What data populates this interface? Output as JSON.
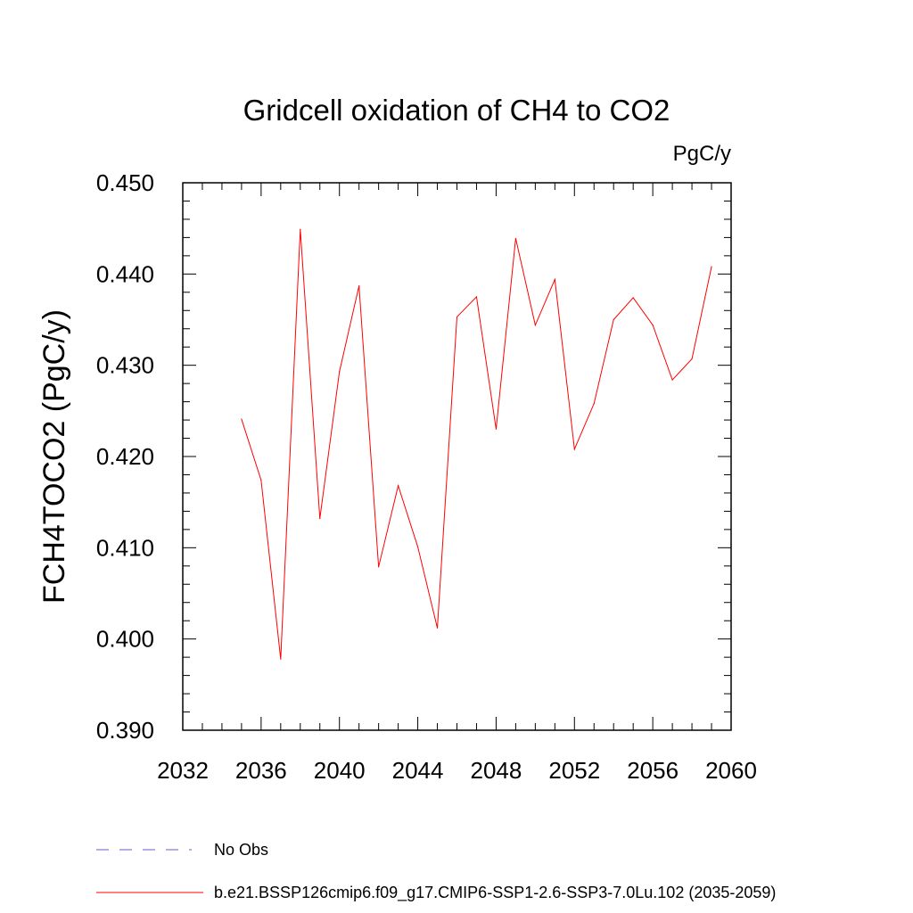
{
  "chart_data": {
    "type": "line",
    "title": "Gridcell oxidation of CH4 to CO2",
    "units": "PgC/y",
    "ylabel": "FCH4TOCO2  (PgC/y)",
    "xlabel": "",
    "xlim": [
      2032,
      2060
    ],
    "ylim": [
      0.39,
      0.45
    ],
    "x_ticks": [
      "2032",
      "2036",
      "2040",
      "2044",
      "2048",
      "2052",
      "2056",
      "2060"
    ],
    "y_ticks": [
      "0.390",
      "0.400",
      "0.410",
      "0.420",
      "0.430",
      "0.440",
      "0.450"
    ],
    "series": [
      {
        "name": "b.e21.BSSP126cmip6.f09_g17.CMIP6-SSP1-2.6-SSP3-7.0Lu.102 (2035-2059)",
        "color": "#ff0000",
        "style": "solid",
        "x": [
          2035,
          2036,
          2037,
          2038,
          2039,
          2040,
          2041,
          2042,
          2043,
          2044,
          2045,
          2046,
          2047,
          2048,
          2049,
          2050,
          2051,
          2052,
          2053,
          2054,
          2055,
          2056,
          2057,
          2058,
          2059
        ],
        "values": [
          0.4241,
          0.4174,
          0.3978,
          0.4449,
          0.4132,
          0.4293,
          0.4387,
          0.4079,
          0.4168,
          0.4101,
          0.4012,
          0.4353,
          0.4375,
          0.423,
          0.4439,
          0.4344,
          0.4394,
          0.4208,
          0.4258,
          0.435,
          0.4374,
          0.4344,
          0.4284,
          0.4307,
          0.4408
        ]
      }
    ],
    "legend": [
      {
        "label": "No Obs",
        "color": "#6a5acd",
        "style": "dashed"
      },
      {
        "label": "b.e21.BSSP126cmip6.f09_g17.CMIP6-SSP1-2.6-SSP3-7.0Lu.102 (2035-2059)",
        "color": "#ff0000",
        "style": "solid"
      }
    ]
  }
}
